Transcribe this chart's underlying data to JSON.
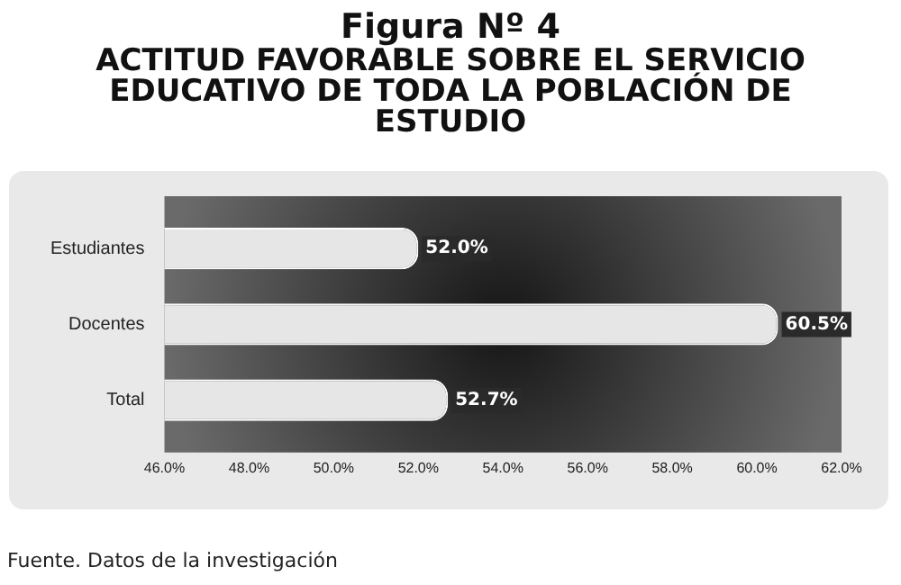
{
  "chart_data": {
    "type": "bar",
    "orientation": "horizontal",
    "title": "Figura Nº 4",
    "subtitle": "ACTITUD FAVORABLE SOBRE EL SERVICIO EDUCATIVO DE TODA LA POBLACIÓN DE ESTUDIO",
    "categories": [
      "Estudiantes",
      "Docentes",
      "Total"
    ],
    "values": [
      52.0,
      60.5,
      52.7
    ],
    "value_labels": [
      "52.0%",
      "60.5%",
      "52.7%"
    ],
    "color": "#e6e6e6",
    "xlim": [
      46,
      62
    ],
    "xticks": [
      {
        "value": 46,
        "label": "46.0%"
      },
      {
        "value": 48,
        "label": "48.0%"
      },
      {
        "value": 50,
        "label": "50.0%"
      },
      {
        "value": 52,
        "label": "52.0%"
      },
      {
        "value": 54,
        "label": "54.0%"
      },
      {
        "value": 56,
        "label": "56.0%"
      },
      {
        "value": 58,
        "label": "58.0%"
      },
      {
        "value": 60,
        "label": "60.0%"
      },
      {
        "value": 62,
        "label": "62.0%"
      }
    ],
    "grid": false,
    "legend": false,
    "annotations": [
      "Fuente. Datos de la investigación"
    ]
  }
}
